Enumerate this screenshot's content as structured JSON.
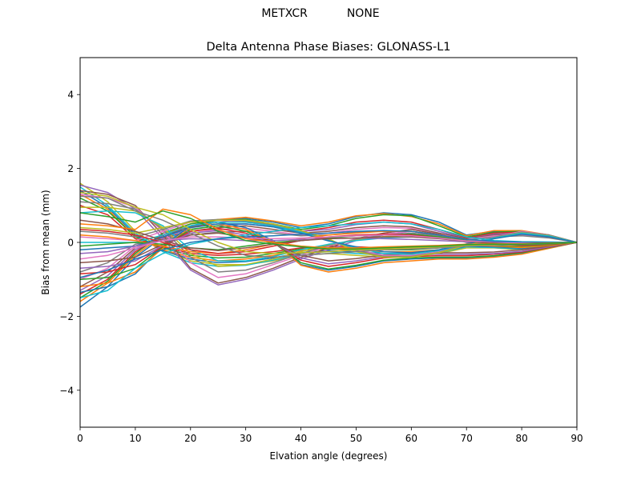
{
  "suptitle": "METXCR           NONE",
  "chart_data": {
    "type": "line",
    "title": "Delta Antenna Phase Biases: GLONASS-L1",
    "xlabel": "Elvation angle (degrees)",
    "ylabel": "Bias from mean (mm)",
    "xlim": [
      0,
      90
    ],
    "ylim": [
      -5,
      5
    ],
    "xticks": [
      0,
      10,
      20,
      30,
      40,
      50,
      60,
      70,
      80,
      90
    ],
    "yticks": [
      -4,
      -2,
      0,
      2,
      4
    ],
    "ytick_labels": [
      "−4",
      "−2",
      "0",
      "2",
      "4"
    ],
    "grid": false,
    "legend": "none",
    "x": [
      0,
      5,
      10,
      15,
      20,
      25,
      30,
      35,
      40,
      45,
      50,
      55,
      60,
      65,
      70,
      75,
      80,
      85,
      90
    ],
    "colors": [
      "#1f77b4",
      "#ff7f0e",
      "#2ca02c",
      "#d62728",
      "#9467bd",
      "#8c564b",
      "#e377c2",
      "#7f7f7f",
      "#bcbd22",
      "#17becf"
    ],
    "series": [
      {
        "values": [
          -1.75,
          -1.2,
          -0.4,
          0.15,
          0.45,
          0.6,
          0.65,
          0.55,
          0.4,
          0.5,
          0.7,
          0.8,
          0.75,
          0.55,
          0.2,
          0.3,
          0.3,
          0.2,
          0.0
        ]
      },
      {
        "values": [
          -1.6,
          -1.1,
          -0.35,
          0.2,
          0.5,
          0.62,
          0.68,
          0.58,
          0.45,
          0.55,
          0.72,
          0.78,
          0.7,
          0.5,
          0.18,
          0.32,
          0.32,
          0.2,
          0.0
        ]
      },
      {
        "values": [
          -1.5,
          -1.05,
          -0.3,
          0.25,
          0.5,
          0.6,
          0.62,
          0.5,
          0.35,
          0.45,
          0.65,
          0.75,
          0.72,
          0.45,
          0.15,
          0.28,
          0.3,
          0.18,
          0.0
        ]
      },
      {
        "values": [
          -1.4,
          -1.0,
          -0.25,
          0.2,
          0.42,
          0.55,
          0.58,
          0.45,
          0.3,
          0.4,
          0.55,
          0.6,
          0.55,
          0.35,
          0.12,
          0.25,
          0.28,
          0.18,
          0.0
        ]
      },
      {
        "values": [
          -1.3,
          -0.9,
          -0.2,
          0.15,
          0.35,
          0.45,
          0.5,
          0.42,
          0.3,
          0.35,
          0.48,
          0.55,
          0.5,
          0.3,
          0.1,
          0.22,
          0.25,
          0.16,
          0.0
        ]
      },
      {
        "values": [
          -1.2,
          -0.8,
          -0.15,
          0.12,
          0.3,
          0.4,
          0.45,
          0.35,
          0.25,
          0.3,
          0.4,
          0.45,
          0.42,
          0.25,
          0.1,
          0.2,
          0.22,
          0.15,
          0.0
        ]
      },
      {
        "values": [
          -1.0,
          -0.7,
          -0.1,
          0.1,
          0.25,
          0.35,
          0.38,
          0.3,
          0.2,
          0.25,
          0.35,
          0.4,
          0.38,
          0.22,
          0.08,
          0.18,
          0.2,
          0.14,
          0.0
        ]
      },
      {
        "values": [
          -0.8,
          -0.55,
          -0.05,
          0.08,
          0.2,
          0.28,
          0.3,
          0.25,
          0.18,
          0.2,
          0.28,
          0.3,
          0.3,
          0.18,
          0.06,
          0.15,
          0.18,
          0.12,
          0.0
        ]
      },
      {
        "values": [
          1.6,
          1.1,
          0.3,
          -0.2,
          -0.5,
          -0.6,
          -0.6,
          -0.5,
          -0.35,
          -0.3,
          -0.35,
          -0.4,
          -0.4,
          -0.3,
          -0.15,
          -0.15,
          -0.2,
          -0.12,
          0.0
        ]
      },
      {
        "values": [
          1.5,
          1.0,
          0.25,
          -0.25,
          -0.55,
          -0.65,
          -0.62,
          -0.48,
          -0.3,
          -0.25,
          -0.3,
          -0.35,
          -0.35,
          -0.28,
          -0.12,
          -0.14,
          -0.18,
          -0.1,
          0.0
        ]
      },
      {
        "values": [
          1.4,
          0.95,
          0.2,
          -0.22,
          -0.45,
          -0.55,
          -0.52,
          -0.42,
          -0.28,
          -0.22,
          -0.25,
          -0.3,
          -0.3,
          -0.25,
          -0.1,
          -0.12,
          -0.16,
          -0.1,
          0.0
        ]
      },
      {
        "values": [
          1.3,
          0.9,
          0.15,
          -0.2,
          -0.4,
          -0.5,
          -0.45,
          -0.35,
          -0.22,
          -0.18,
          -0.2,
          -0.25,
          -0.25,
          -0.2,
          -0.08,
          -0.1,
          -0.14,
          -0.08,
          0.0
        ]
      },
      {
        "values": [
          1.2,
          0.85,
          0.15,
          -0.15,
          -0.35,
          -0.42,
          -0.4,
          -0.3,
          -0.18,
          -0.14,
          -0.15,
          -0.2,
          -0.2,
          -0.15,
          -0.06,
          -0.08,
          -0.12,
          -0.07,
          0.0
        ]
      },
      {
        "values": [
          1.0,
          0.75,
          0.1,
          -0.12,
          -0.3,
          -0.35,
          -0.32,
          -0.25,
          -0.15,
          -0.1,
          -0.12,
          -0.15,
          -0.15,
          -0.12,
          -0.05,
          -0.07,
          -0.1,
          -0.06,
          0.0
        ]
      },
      {
        "values": [
          1.55,
          1.35,
          0.9,
          0.1,
          -0.75,
          -1.15,
          -1.0,
          -0.75,
          -0.45,
          -0.2,
          0.05,
          0.2,
          0.3,
          0.2,
          0.0,
          -0.05,
          -0.1,
          -0.05,
          0.0
        ]
      },
      {
        "values": [
          1.4,
          1.3,
          1.0,
          0.2,
          -0.7,
          -1.1,
          -0.95,
          -0.7,
          -0.4,
          -0.15,
          0.1,
          0.25,
          0.35,
          0.22,
          0.02,
          -0.04,
          -0.08,
          -0.04,
          0.0
        ]
      },
      {
        "values": [
          1.3,
          1.2,
          0.95,
          0.3,
          -0.55,
          -0.95,
          -0.85,
          -0.6,
          -0.35,
          -0.1,
          0.1,
          0.22,
          0.3,
          0.2,
          0.02,
          -0.03,
          -0.07,
          -0.04,
          0.0
        ]
      },
      {
        "values": [
          1.1,
          1.05,
          0.9,
          0.35,
          -0.4,
          -0.8,
          -0.75,
          -0.55,
          -0.3,
          -0.08,
          0.08,
          0.2,
          0.25,
          0.18,
          0.02,
          -0.02,
          -0.06,
          -0.03,
          0.0
        ]
      },
      {
        "values": [
          0.95,
          0.95,
          0.85,
          0.4,
          -0.3,
          -0.65,
          -0.6,
          -0.45,
          -0.25,
          -0.06,
          0.06,
          0.16,
          0.2,
          0.15,
          0.02,
          -0.02,
          -0.05,
          -0.03,
          0.0
        ]
      },
      {
        "values": [
          0.8,
          0.85,
          0.8,
          0.45,
          -0.2,
          -0.5,
          -0.5,
          -0.38,
          -0.2,
          -0.05,
          0.05,
          0.12,
          0.15,
          0.12,
          0.02,
          -0.02,
          -0.04,
          -0.02,
          0.0
        ]
      },
      {
        "values": [
          -1.35,
          -1.2,
          -0.85,
          -0.1,
          0.45,
          0.55,
          0.4,
          0.05,
          -0.6,
          -0.75,
          -0.65,
          -0.5,
          -0.45,
          -0.42,
          -0.42,
          -0.38,
          -0.3,
          -0.15,
          0.0
        ]
      },
      {
        "values": [
          -1.2,
          -1.1,
          -0.8,
          -0.15,
          0.4,
          0.5,
          0.35,
          0.02,
          -0.62,
          -0.8,
          -0.7,
          -0.55,
          -0.5,
          -0.45,
          -0.45,
          -0.4,
          -0.32,
          -0.16,
          0.0
        ]
      },
      {
        "values": [
          -1.0,
          -0.95,
          -0.7,
          -0.12,
          0.35,
          0.45,
          0.3,
          0.0,
          -0.55,
          -0.72,
          -0.62,
          -0.48,
          -0.42,
          -0.4,
          -0.4,
          -0.36,
          -0.28,
          -0.14,
          0.0
        ]
      },
      {
        "values": [
          -0.85,
          -0.8,
          -0.6,
          -0.1,
          0.3,
          0.38,
          0.25,
          0.0,
          -0.48,
          -0.65,
          -0.55,
          -0.42,
          -0.38,
          -0.36,
          -0.36,
          -0.32,
          -0.26,
          -0.13,
          0.0
        ]
      },
      {
        "values": [
          -0.7,
          -0.65,
          -0.5,
          -0.08,
          0.25,
          0.32,
          0.2,
          -0.02,
          -0.42,
          -0.58,
          -0.5,
          -0.38,
          -0.34,
          -0.32,
          -0.32,
          -0.3,
          -0.24,
          -0.12,
          0.0
        ]
      },
      {
        "values": [
          -0.55,
          -0.5,
          -0.4,
          -0.05,
          0.2,
          0.25,
          0.15,
          -0.02,
          -0.35,
          -0.5,
          -0.44,
          -0.34,
          -0.3,
          -0.28,
          -0.28,
          -0.26,
          -0.2,
          -0.1,
          0.0
        ]
      },
      {
        "values": [
          0.15,
          0.1,
          0.05,
          0.3,
          0.55,
          0.6,
          0.55,
          0.45,
          0.25,
          0.05,
          -0.2,
          -0.35,
          -0.35,
          -0.25,
          -0.05,
          0.15,
          0.3,
          0.2,
          0.0
        ]
      },
      {
        "values": [
          0.3,
          0.25,
          0.15,
          0.35,
          0.58,
          0.62,
          0.58,
          0.48,
          0.3,
          0.08,
          -0.22,
          -0.38,
          -0.38,
          -0.27,
          -0.06,
          0.14,
          0.28,
          0.2,
          0.0
        ]
      },
      {
        "values": [
          0.4,
          0.35,
          0.25,
          0.4,
          0.55,
          0.6,
          0.6,
          0.5,
          0.32,
          0.1,
          -0.25,
          -0.4,
          -0.4,
          -0.28,
          -0.08,
          0.12,
          0.26,
          0.18,
          0.0
        ]
      },
      {
        "values": [
          0.0,
          0.0,
          0.0,
          0.2,
          0.45,
          0.55,
          0.55,
          0.45,
          0.28,
          0.05,
          -0.15,
          -0.3,
          -0.32,
          -0.22,
          -0.05,
          0.12,
          0.25,
          0.17,
          0.0
        ]
      },
      {
        "values": [
          -0.2,
          -0.15,
          -0.1,
          0.15,
          0.4,
          0.5,
          0.5,
          0.42,
          0.25,
          0.04,
          -0.12,
          -0.25,
          -0.28,
          -0.2,
          -0.04,
          0.1,
          0.22,
          0.15,
          0.0
        ]
      },
      {
        "values": [
          0.2,
          0.15,
          0.05,
          -0.1,
          -0.25,
          -0.3,
          -0.2,
          -0.05,
          0.1,
          0.2,
          0.25,
          0.3,
          0.3,
          0.2,
          0.08,
          -0.05,
          -0.12,
          -0.08,
          0.0
        ]
      },
      {
        "values": [
          -0.1,
          -0.05,
          0.0,
          -0.05,
          -0.15,
          -0.2,
          -0.1,
          0.0,
          0.05,
          0.12,
          0.18,
          0.2,
          0.22,
          0.15,
          0.05,
          -0.04,
          -0.1,
          -0.06,
          0.0
        ]
      },
      {
        "values": [
          0.35,
          0.3,
          0.2,
          0.0,
          -0.2,
          -0.3,
          -0.25,
          -0.1,
          0.05,
          0.15,
          0.2,
          0.22,
          0.2,
          0.12,
          0.04,
          -0.03,
          -0.08,
          -0.05,
          0.0
        ]
      },
      {
        "values": [
          -0.3,
          -0.25,
          -0.1,
          0.05,
          0.1,
          0.08,
          0.05,
          0.05,
          0.08,
          0.1,
          0.12,
          0.1,
          0.08,
          0.05,
          0.02,
          0.0,
          -0.04,
          -0.03,
          0.0
        ]
      },
      {
        "values": [
          0.6,
          0.5,
          0.3,
          0.05,
          -0.15,
          -0.22,
          -0.15,
          -0.05,
          0.05,
          0.1,
          0.12,
          0.15,
          0.15,
          0.1,
          0.03,
          -0.02,
          -0.06,
          -0.04,
          0.0
        ]
      },
      {
        "values": [
          -0.45,
          -0.35,
          -0.15,
          0.05,
          0.15,
          0.15,
          0.12,
          0.1,
          0.12,
          0.15,
          0.18,
          0.2,
          0.18,
          0.12,
          0.04,
          0.02,
          -0.02,
          -0.02,
          0.0
        ]
      },
      {
        "values": [
          1.25,
          1.2,
          0.85,
          0.6,
          0.25,
          -0.1,
          -0.35,
          -0.4,
          -0.35,
          -0.3,
          -0.25,
          -0.2,
          -0.18,
          -0.15,
          -0.1,
          -0.08,
          -0.06,
          -0.04,
          0.0
        ]
      },
      {
        "values": [
          1.35,
          1.25,
          0.95,
          0.75,
          0.35,
          0.0,
          -0.25,
          -0.3,
          -0.28,
          -0.25,
          -0.2,
          -0.18,
          -0.15,
          -0.12,
          -0.08,
          -0.06,
          -0.05,
          -0.03,
          0.0
        ]
      },
      {
        "values": [
          -1.5,
          -1.3,
          -0.7,
          -0.3,
          -0.05,
          0.1,
          0.2,
          0.3,
          0.4,
          0.45,
          0.5,
          0.55,
          0.5,
          0.35,
          0.15,
          0.05,
          0.02,
          0.01,
          0.0
        ]
      },
      {
        "values": [
          -0.95,
          -0.75,
          -0.45,
          -0.2,
          0.0,
          0.1,
          0.15,
          0.18,
          0.22,
          0.25,
          0.3,
          0.32,
          0.3,
          0.2,
          0.08,
          0.03,
          0.01,
          0.0,
          0.0
        ]
      },
      {
        "values": [
          0.5,
          0.45,
          0.35,
          0.9,
          0.75,
          0.35,
          0.1,
          0.0,
          -0.1,
          -0.15,
          -0.15,
          -0.12,
          -0.1,
          -0.08,
          -0.05,
          -0.04,
          -0.04,
          -0.02,
          0.0
        ]
      },
      {
        "values": [
          0.8,
          0.7,
          0.55,
          0.85,
          0.65,
          0.3,
          0.05,
          -0.05,
          -0.12,
          -0.18,
          -0.18,
          -0.15,
          -0.12,
          -0.1,
          -0.06,
          -0.05,
          -0.05,
          -0.03,
          0.0
        ]
      }
    ]
  }
}
